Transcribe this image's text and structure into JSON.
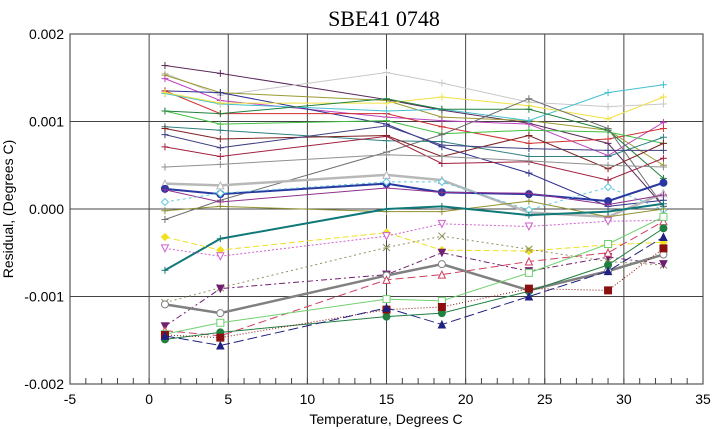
{
  "chart_data": {
    "type": "line",
    "title": "SBE41 0748",
    "xlabel": "Temperature, Degrees C",
    "ylabel": "Residual, (Degrees C)",
    "xlim": [
      -5,
      35
    ],
    "ylim": [
      -0.002,
      0.002
    ],
    "xticks": [
      "-5",
      "0",
      "5",
      "10",
      "15",
      "20",
      "25",
      "30",
      "35"
    ],
    "yticks": [
      "-0.002",
      "-0.001",
      "0.000",
      "0.001",
      "0.002"
    ],
    "grid": true,
    "legend": "none",
    "x": [
      1,
      4.5,
      15,
      18.5,
      24,
      29,
      32.5
    ],
    "series": [
      {
        "color": "#5a2a5a",
        "marker": "plus",
        "dash": "",
        "values": [
          0.00164,
          0.00155,
          0.00125,
          0.00113,
          0.00098,
          0.00075,
          3e-05
        ]
      },
      {
        "color": "#c8c8c8",
        "marker": "plus",
        "dash": "",
        "values": [
          0.00155,
          0.0013,
          0.00156,
          0.00144,
          0.00122,
          0.00117,
          0.0012
        ]
      },
      {
        "color": "#9a9a30",
        "marker": "plus",
        "dash": "",
        "values": [
          0.00153,
          0.00133,
          0.00124,
          0.00105,
          0.00101,
          0.0009,
          0.0005
        ]
      },
      {
        "color": "#c040c0",
        "marker": "plus",
        "dash": "",
        "values": [
          0.00149,
          0.00124,
          0.00105,
          0.00101,
          0.00097,
          0.00061,
          0.00099
        ]
      },
      {
        "color": "#303090",
        "marker": "plus",
        "dash": "",
        "values": [
          0.00135,
          0.00133,
          0.00097,
          0.00071,
          0.00041,
          3e-05,
          0.0001
        ]
      },
      {
        "color": "#d03030",
        "marker": "plus",
        "dash": "",
        "values": [
          0.00135,
          0.00109,
          0.00109,
          0.00094,
          0.00075,
          0.0008,
          0.00092
        ]
      },
      {
        "color": "#40c0d0",
        "marker": "plus",
        "dash": "",
        "values": [
          0.00132,
          0.0012,
          0.00112,
          0.00114,
          0.00101,
          0.00133,
          0.00142
        ]
      },
      {
        "color": "#f0e040",
        "marker": "plus",
        "dash": "",
        "values": [
          0.00133,
          0.00121,
          0.00121,
          0.00128,
          0.00118,
          0.00103,
          0.00128
        ]
      },
      {
        "color": "#40c040",
        "marker": "plus",
        "dash": "",
        "values": [
          0.00112,
          0.00097,
          0.00101,
          0.00086,
          0.0009,
          0.00088,
          0.00075
        ]
      },
      {
        "color": "#208040",
        "marker": "plus",
        "dash": "",
        "values": [
          0.00112,
          0.00109,
          0.00126,
          0.00114,
          0.00114,
          0.0009,
          0.00035
        ]
      },
      {
        "color": "#707070",
        "marker": "plus",
        "dash": "",
        "values": [
          -0.00012,
          0.0001,
          0.00065,
          0.00085,
          0.00126,
          0.00092,
          3e-05
        ]
      },
      {
        "color": "#308080",
        "marker": "plus",
        "dash": "",
        "values": [
          0.00094,
          0.0009,
          0.00078,
          0.00077,
          0.0006,
          0.0006,
          0.00082
        ]
      },
      {
        "color": "#802020",
        "marker": "plus",
        "dash": "",
        "values": [
          0.00092,
          0.0008,
          0.00084,
          0.0006,
          0.00084,
          0.00046,
          0.00075
        ]
      },
      {
        "color": "#404080",
        "marker": "plus",
        "dash": "",
        "values": [
          0.00085,
          0.0007,
          0.00095,
          0.00073,
          0.00069,
          0.00067,
          0.00067
        ]
      },
      {
        "color": "#a02040",
        "marker": "plus",
        "dash": "",
        "values": [
          0.00071,
          0.0006,
          0.00083,
          0.00052,
          0.00054,
          0.00033,
          0.00058
        ]
      },
      {
        "color": "#909090",
        "marker": "plus",
        "dash": "",
        "values": [
          0.00048,
          0.00051,
          0.00062,
          0.0006,
          0.00055,
          0.0005,
          0.00048
        ]
      },
      {
        "color": "#b8b8b8",
        "marker": "triangle",
        "dash": "",
        "width": 2.5,
        "values": [
          0.00029,
          0.00027,
          0.00039,
          0.00033,
          -4e-05,
          -9e-05,
          0.00018
        ]
      },
      {
        "color": "#2838a0",
        "marker": "circle-filled",
        "dash": "",
        "width": 2,
        "values": [
          0.00023,
          0.00017,
          0.00029,
          0.00019,
          0.00017,
          9e-05,
          0.0003
        ]
      },
      {
        "color": "#903090",
        "marker": "plus",
        "dash": "",
        "values": [
          0.00022,
          8e-05,
          0.00024,
          0.00019,
          0.00018,
          5e-05,
          0.00016
        ]
      },
      {
        "color": "#60c8e0",
        "marker": "diamond",
        "dash": "3,3",
        "values": [
          8e-05,
          0.00018,
          0.00031,
          0.00031,
          -1e-05,
          0.00025,
          -1e-05
        ]
      },
      {
        "color": "#909030",
        "marker": "plus",
        "dash": "",
        "values": [
          -2e-05,
          3e-05,
          -3e-05,
          -3e-05,
          9e-05,
          -9e-05,
          0.0
        ]
      },
      {
        "color": "#107878",
        "marker": "plus",
        "dash": "",
        "width": 2,
        "values": [
          -0.0007,
          -0.00034,
          0.0,
          3e-05,
          -7e-05,
          -3e-05,
          6e-05
        ]
      },
      {
        "color": "#f0e020",
        "marker": "diamond-filled",
        "dash": "6,3",
        "values": [
          -0.00032,
          -0.00047,
          -0.00027,
          -0.00047,
          -0.00048,
          -0.00041,
          -0.00038
        ]
      },
      {
        "color": "#d060d0",
        "marker": "triangle-down",
        "dash": "2,2",
        "values": [
          -0.00045,
          -0.00054,
          -0.00031,
          -0.00017,
          -0.0002,
          -0.00014,
          -0.00013
        ]
      },
      {
        "color": "#909060",
        "marker": "x",
        "dash": "2,3",
        "values": [
          -0.00107,
          -0.0009,
          -0.00044,
          -0.00031,
          -0.00046,
          -0.0006,
          -0.00064
        ]
      },
      {
        "color": "#702070",
        "marker": "triangle-down-filled",
        "dash": "6,3,2,3",
        "values": [
          -0.00134,
          -0.00091,
          -0.00075,
          -0.0005,
          -0.00071,
          -0.00055,
          -0.00063
        ]
      },
      {
        "color": "#808080",
        "marker": "circle",
        "dash": "",
        "width": 2.5,
        "values": [
          -0.00109,
          -0.00119,
          -0.00076,
          -0.00063,
          -0.00093,
          -0.00071,
          -0.00052
        ]
      },
      {
        "color": "#d04060",
        "marker": "triangle",
        "dash": "8,4",
        "values": [
          -0.00139,
          -0.00145,
          -0.00081,
          -0.00075,
          -0.0006,
          -0.0005,
          -0.00014
        ]
      },
      {
        "color": "#70d070",
        "marker": "square",
        "dash": "",
        "values": [
          -0.00143,
          -0.0013,
          -0.00103,
          -0.00105,
          -0.00073,
          -0.0004,
          -9e-05
        ]
      },
      {
        "color": "#208040",
        "marker": "circle-filled",
        "dash": "",
        "values": [
          -0.00149,
          -0.00141,
          -0.00123,
          -0.00119,
          -0.00094,
          -0.00064,
          -0.00022
        ]
      },
      {
        "color": "#8b1010",
        "marker": "square-filled",
        "dash": "1,2",
        "values": [
          -0.00144,
          -0.00147,
          -0.00115,
          -0.00112,
          -0.00091,
          -0.00093,
          -0.00045
        ]
      },
      {
        "color": "#202080",
        "marker": "triangle-filled",
        "dash": "10,4",
        "values": [
          -0.00145,
          -0.00156,
          -0.00113,
          -0.00132,
          -0.001,
          -0.00071,
          -0.00032
        ]
      }
    ]
  }
}
